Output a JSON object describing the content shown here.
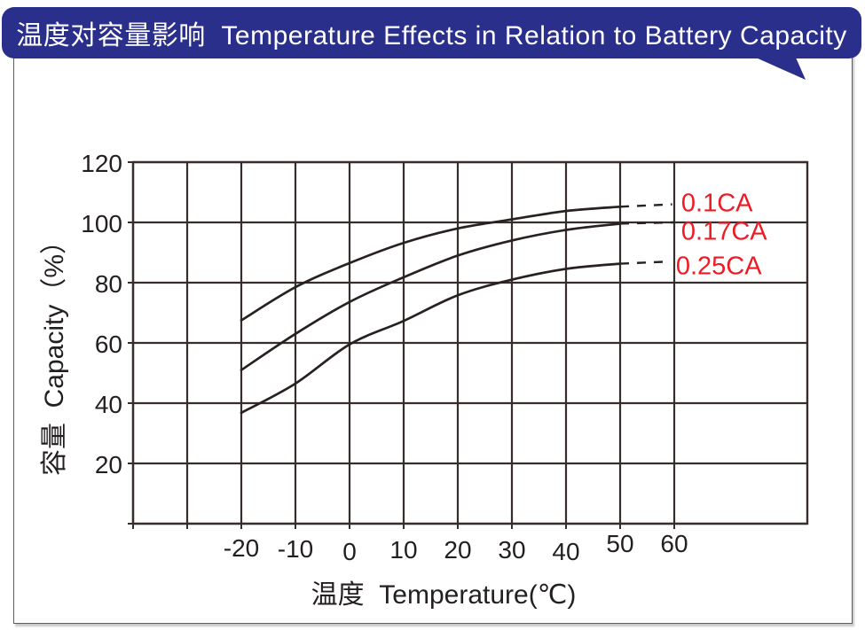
{
  "header": {
    "title": "温度对容量影响  Temperature Effects in Relation to Battery Capacity",
    "bg_color": "#2a2f8c",
    "text_color": "#ffffff"
  },
  "chart_data": {
    "type": "line",
    "title": "温度对容量影响 Temperature Effects in Relation to Battery Capacity",
    "xlabel": "温度  Temperature(℃)",
    "ylabel": "容量  Capacity（%）",
    "x_unit": "°C",
    "y_unit": "%",
    "grid": true,
    "ylim": [
      0,
      120
    ],
    "x_tick_labels": [
      -20,
      -10,
      0,
      10,
      20,
      30,
      40,
      50,
      60
    ],
    "x_gridlines": [
      -40,
      -30,
      -20,
      -10,
      0,
      10,
      20,
      30,
      40,
      50,
      60
    ],
    "y_tick_labels": [
      120,
      100,
      80,
      60,
      40,
      20
    ],
    "y_gridlines": [
      0,
      20,
      40,
      60,
      80,
      100,
      120
    ],
    "line_color": "#27211f",
    "label_color": "#ec1b24",
    "x": [
      -20,
      -10,
      0,
      10,
      20,
      30,
      40,
      50
    ],
    "series": [
      {
        "name": "0.1CA",
        "values": [
          67.5,
          78.5,
          86.5,
          93.2,
          98.0,
          101.0,
          103.8,
          105.2
        ],
        "dash_to": {
          "x": 59.6,
          "y": 106.0
        },
        "label_at": {
          "x": 61.3,
          "y": 106.3
        }
      },
      {
        "name": "0.17CA",
        "values": [
          51.0,
          63.0,
          73.6,
          81.8,
          89.0,
          94.0,
          97.5,
          99.6
        ],
        "dash_to": {
          "x": 60.0,
          "y": 100.0
        },
        "label_at": {
          "x": 61.3,
          "y": 96.9
        }
      },
      {
        "name": "0.25CA",
        "values": [
          36.8,
          46.5,
          59.5,
          67.3,
          75.8,
          81.0,
          84.6,
          86.3
        ],
        "dash_to": {
          "x": 59.0,
          "y": 87.0
        },
        "label_at": {
          "x": 60.3,
          "y": 85.3
        }
      }
    ]
  }
}
